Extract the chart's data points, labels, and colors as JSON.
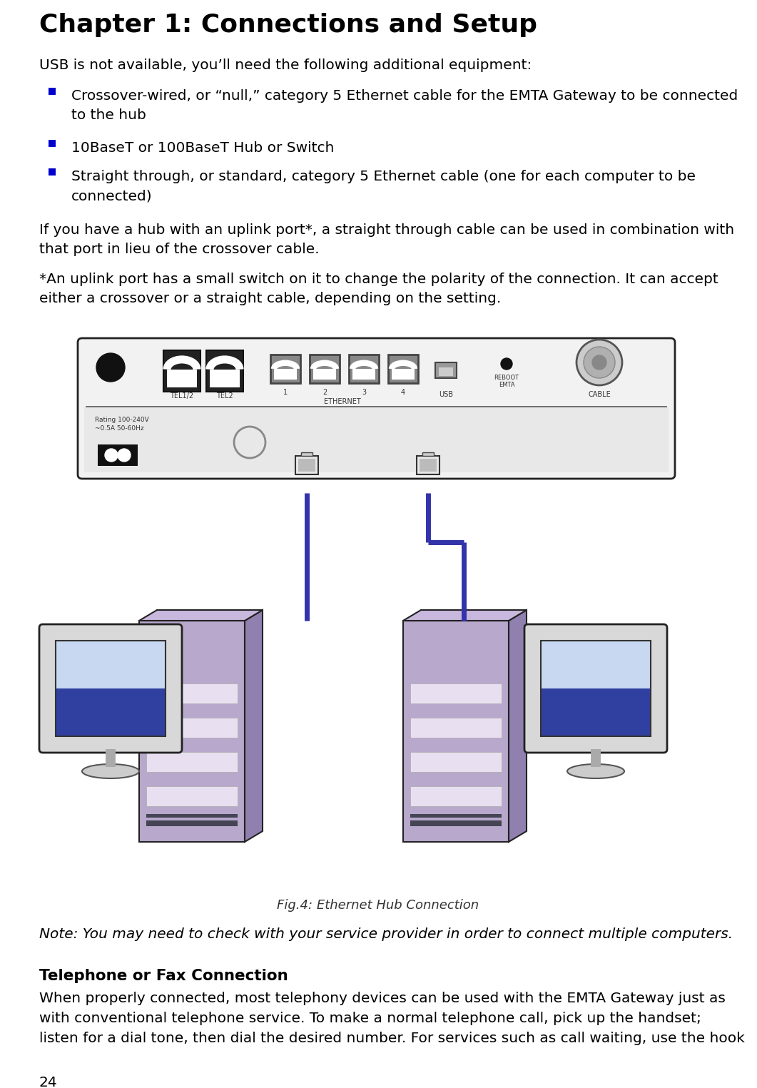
{
  "title": "Chapter 1: Connections and Setup",
  "bg_color": "#ffffff",
  "title_color": "#000000",
  "title_fontsize": 26,
  "body_fontsize": 14.5,
  "bullet_color": "#0000cc",
  "body_color": "#000000",
  "intro_text": "USB is not available, you’ll need the following additional equipment:",
  "bullets": [
    "Crossover-wired, or “null,” category 5 Ethernet cable for the EMTA Gateway to be connected\nto the hub",
    "10BaseT or 100BaseT Hub or Switch",
    "Straight through, or standard, category 5 Ethernet cable (one for each computer to be\nconnected)"
  ],
  "paragraph1": "If you have a hub with an uplink port*, a straight through cable can be used in combination with\nthat port in lieu of the crossover cable.",
  "paragraph2": "*An uplink port has a small switch on it to change the polarity of the connection. It can accept\neither a crossover or a straight cable, depending on the setting.",
  "fig_caption": "Fig.4: Ethernet Hub Connection",
  "note_text": "Note: You may need to check with your service provider in order to connect multiple computers.",
  "section_title": "Telephone or Fax Connection",
  "section_body": "When properly connected, most telephony devices can be used with the EMTA Gateway just as\nwith conventional telephone service. To make a normal telephone call, pick up the handset;\nlisten for a dial tone, then dial the desired number. For services such as call waiting, use the hook",
  "page_number": "24",
  "cable_color": "#3333aa",
  "tower_front_color": "#b8a8cc",
  "tower_side_color": "#9080b0",
  "tower_top_color": "#c8b8dd",
  "tower_stripe_color": "#e8e0f0",
  "tower_dark_stripe": "#444455",
  "monitor_body_color": "#d8d8d8",
  "monitor_screen_top": "#c8d8f0",
  "monitor_screen_bot": "#3040a0",
  "monitor_base_color": "#cccccc"
}
